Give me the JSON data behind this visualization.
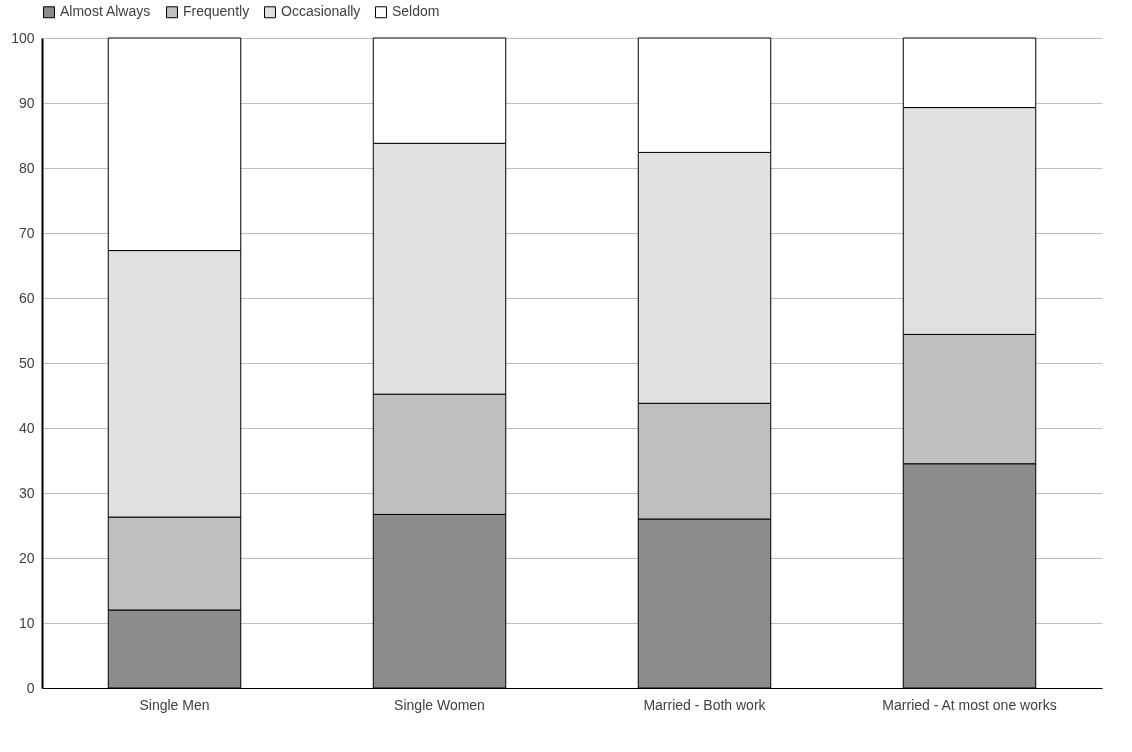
{
  "chart_data": {
    "type": "bar",
    "stacked": true,
    "categories": [
      "Single Men",
      "Single Women",
      "Married - Both work",
      "Married - At most one works"
    ],
    "series": [
      {
        "name": "Almost Always",
        "color": "#8c8c8c",
        "values": [
          12,
          26.7,
          26,
          34.5
        ]
      },
      {
        "name": "Frequently",
        "color": "#bfbfbf",
        "values": [
          14.3,
          18.5,
          17.8,
          19.9
        ]
      },
      {
        "name": "Occasionally",
        "color": "#e0e0e0",
        "values": [
          41,
          38.6,
          38.6,
          34.9
        ]
      },
      {
        "name": "Seldom",
        "color": "#ffffff",
        "values": [
          32.7,
          16.2,
          17.6,
          10.7
        ]
      }
    ],
    "ylim": [
      0,
      100
    ],
    "yticks": [
      0,
      10,
      20,
      30,
      40,
      50,
      60,
      70,
      80,
      90,
      100
    ],
    "grid": "y",
    "legend": "top"
  }
}
